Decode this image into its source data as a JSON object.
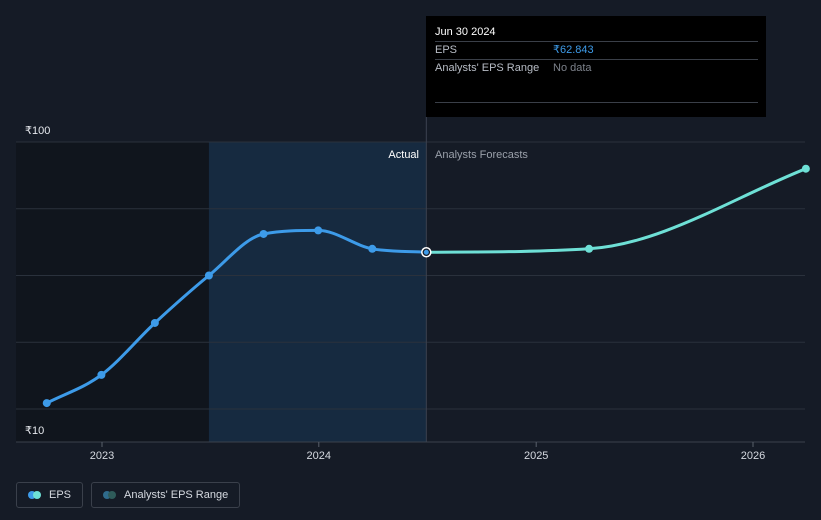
{
  "chart_data": {
    "type": "line",
    "y_tick_labels": {
      "top": "₹100",
      "bottom": "₹10"
    },
    "ylim": [
      10,
      100
    ],
    "x_ticks": [
      {
        "label": "2023",
        "value": "2023-01-01"
      },
      {
        "label": "2024",
        "value": "2024-01-01"
      },
      {
        "label": "2025",
        "value": "2025-01-01"
      },
      {
        "label": "2026",
        "value": "2026-01-01"
      }
    ],
    "region_labels": {
      "actual": "Actual",
      "forecast": "Analysts Forecasts"
    },
    "series": [
      {
        "name": "EPS",
        "color": "#3d9be9",
        "points": [
          {
            "x": "2022-09-30",
            "y": 12
          },
          {
            "x": "2022-12-31",
            "y": 21.5
          },
          {
            "x": "2023-03-31",
            "y": 39
          },
          {
            "x": "2023-06-30",
            "y": 55
          },
          {
            "x": "2023-09-30",
            "y": 69
          },
          {
            "x": "2023-12-31",
            "y": 70.2
          },
          {
            "x": "2024-03-31",
            "y": 64
          },
          {
            "x": "2024-06-30",
            "y": 62.843
          }
        ]
      },
      {
        "name": "EPS forecast",
        "color": "#6ee0d6",
        "points": [
          {
            "x": "2024-06-30",
            "y": 62.843
          },
          {
            "x": "2025-03-31",
            "y": 64
          },
          {
            "x": "2026-03-31",
            "y": 91
          }
        ]
      }
    ],
    "highlight": {
      "from": "2023-06-30",
      "to": "2024-06-30"
    },
    "grid": true
  },
  "tooltip": {
    "date": "Jun 30 2024",
    "eps_label": "EPS",
    "eps_value": "₹62.843",
    "range_label": "Analysts' EPS Range",
    "range_value": "No data"
  },
  "legend": {
    "items": [
      {
        "label": "EPS",
        "colors": [
          "#3d9be9",
          "#6ee0d6"
        ]
      },
      {
        "label": "Analysts' EPS Range",
        "colors": [
          "#2f6b8c",
          "#2e5b5a"
        ]
      }
    ]
  },
  "colors": {
    "background": "#151b26",
    "history_shade": "#10151d",
    "actual_shade": "#17304a",
    "grid": "#2a313c"
  }
}
